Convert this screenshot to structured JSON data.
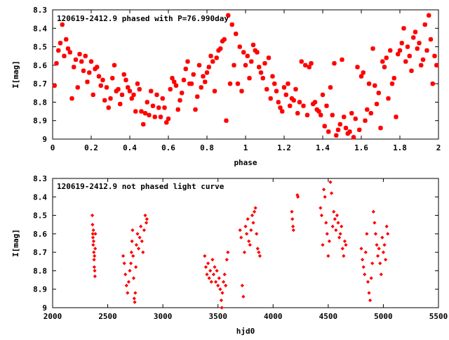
{
  "chart_data": [
    {
      "type": "scatter",
      "title": "120619-2412.9 phased with P=76.990day",
      "xlabel": "phase",
      "ylabel": "I[mag]",
      "xlim": [
        0,
        2
      ],
      "ylim": [
        8.3,
        9.0
      ],
      "y_inverted": true,
      "grid": false,
      "legend": "none",
      "marker_color": "#ff0000",
      "x_ticks": [
        0,
        0.2,
        0.4,
        0.6,
        0.8,
        1,
        1.2,
        1.4,
        1.6,
        1.8,
        2
      ],
      "x_tick_labels": [
        "0",
        "0.2",
        "0.4",
        "0.6",
        "0.8",
        "1",
        "1.2",
        "1.4",
        "1.6",
        "1.8",
        "2"
      ],
      "y_ticks": [
        8.3,
        8.4,
        8.5,
        8.6,
        8.7,
        8.8,
        8.9,
        9.0
      ],
      "y_tick_labels": [
        "8.3",
        "8.4",
        "8.5",
        "8.6",
        "8.7",
        "8.8",
        "8.9",
        "9"
      ],
      "points": [
        [
          0.01,
          8.71
        ],
        [
          0.03,
          8.52
        ],
        [
          0.04,
          8.48
        ],
        [
          0.05,
          8.38
        ],
        [
          0.06,
          8.55
        ],
        [
          0.07,
          8.46
        ],
        [
          0.09,
          8.53
        ],
        [
          0.11,
          8.61
        ],
        [
          0.13,
          8.72
        ],
        [
          0.15,
          8.58
        ],
        [
          0.17,
          8.55
        ],
        [
          0.19,
          8.64
        ],
        [
          0.21,
          8.76
        ],
        [
          0.23,
          8.61
        ],
        [
          0.25,
          8.71
        ],
        [
          0.27,
          8.79
        ],
        [
          0.29,
          8.83
        ],
        [
          0.31,
          8.67
        ],
        [
          0.33,
          8.74
        ],
        [
          0.35,
          8.81
        ],
        [
          0.37,
          8.65
        ],
        [
          0.39,
          8.72
        ],
        [
          0.41,
          8.78
        ],
        [
          0.43,
          8.85
        ],
        [
          0.45,
          8.73
        ],
        [
          0.47,
          8.92
        ],
        [
          0.49,
          8.8
        ],
        [
          0.51,
          8.74
        ],
        [
          0.53,
          8.88
        ],
        [
          0.55,
          8.83
        ],
        [
          0.57,
          8.78
        ],
        [
          0.59,
          8.91
        ],
        [
          0.61,
          8.73
        ],
        [
          0.63,
          8.69
        ],
        [
          0.65,
          8.84
        ],
        [
          0.67,
          8.75
        ],
        [
          0.69,
          8.62
        ],
        [
          0.71,
          8.7
        ],
        [
          0.73,
          8.65
        ],
        [
          0.75,
          8.77
        ],
        [
          0.77,
          8.72
        ],
        [
          0.79,
          8.69
        ],
        [
          0.81,
          8.61
        ],
        [
          0.83,
          8.58
        ],
        [
          0.85,
          8.56
        ],
        [
          0.87,
          8.51
        ],
        [
          0.89,
          8.46
        ],
        [
          0.91,
          8.33
        ],
        [
          0.93,
          8.38
        ],
        [
          0.95,
          8.43
        ],
        [
          0.97,
          8.5
        ],
        [
          0.99,
          8.53
        ],
        [
          1.01,
          8.55
        ],
        [
          1.03,
          8.58
        ],
        [
          1.05,
          8.52
        ],
        [
          1.07,
          8.61
        ],
        [
          1.09,
          8.67
        ],
        [
          1.11,
          8.73
        ],
        [
          1.13,
          8.78
        ],
        [
          1.15,
          8.7
        ],
        [
          1.17,
          8.8
        ],
        [
          1.19,
          8.85
        ],
        [
          1.21,
          8.76
        ],
        [
          1.23,
          8.82
        ],
        [
          1.25,
          8.79
        ],
        [
          1.27,
          8.86
        ],
        [
          1.29,
          8.58
        ],
        [
          1.31,
          8.6
        ],
        [
          1.33,
          8.61
        ],
        [
          1.35,
          8.81
        ],
        [
          1.37,
          8.84
        ],
        [
          1.39,
          8.87
        ],
        [
          1.41,
          8.93
        ],
        [
          1.43,
          8.96
        ],
        [
          1.45,
          8.87
        ],
        [
          1.47,
          8.98
        ],
        [
          1.49,
          8.92
        ],
        [
          1.51,
          8.88
        ],
        [
          1.53,
          8.97
        ],
        [
          1.55,
          8.86
        ],
        [
          1.57,
          8.89
        ],
        [
          1.59,
          8.95
        ],
        [
          1.61,
          8.64
        ],
        [
          1.63,
          8.84
        ],
        [
          1.65,
          8.86
        ],
        [
          1.67,
          8.71
        ],
        [
          1.69,
          8.75
        ],
        [
          1.71,
          8.58
        ],
        [
          1.73,
          8.56
        ],
        [
          1.75,
          8.52
        ],
        [
          1.77,
          8.67
        ],
        [
          1.79,
          8.54
        ],
        [
          1.81,
          8.48
        ],
        [
          1.83,
          8.58
        ],
        [
          1.85,
          8.55
        ],
        [
          1.87,
          8.45
        ],
        [
          1.89,
          8.51
        ],
        [
          1.91,
          8.6
        ],
        [
          1.93,
          8.38
        ],
        [
          1.95,
          8.33
        ],
        [
          1.97,
          8.7
        ],
        [
          1.99,
          8.6
        ],
        [
          0.02,
          8.59
        ],
        [
          0.1,
          8.78
        ],
        [
          0.18,
          8.69
        ],
        [
          0.26,
          8.68
        ],
        [
          0.34,
          8.73
        ],
        [
          0.42,
          8.76
        ],
        [
          0.5,
          8.87
        ],
        [
          0.58,
          8.83
        ],
        [
          0.66,
          8.79
        ],
        [
          0.74,
          8.84
        ],
        [
          0.82,
          8.55
        ],
        [
          0.9,
          8.9
        ],
        [
          0.98,
          8.74
        ],
        [
          1.06,
          8.53
        ],
        [
          1.14,
          8.66
        ],
        [
          1.22,
          8.7
        ],
        [
          1.3,
          8.82
        ],
        [
          1.38,
          8.85
        ],
        [
          1.46,
          8.59
        ],
        [
          1.54,
          8.96
        ],
        [
          1.62,
          8.9
        ],
        [
          1.7,
          8.94
        ],
        [
          1.78,
          8.88
        ],
        [
          1.86,
          8.63
        ],
        [
          1.94,
          8.52
        ],
        [
          0.08,
          8.51
        ],
        [
          0.16,
          8.63
        ],
        [
          0.24,
          8.66
        ],
        [
          0.32,
          8.6
        ],
        [
          0.4,
          8.74
        ],
        [
          0.48,
          8.86
        ],
        [
          0.56,
          8.88
        ],
        [
          0.64,
          8.71
        ],
        [
          0.72,
          8.7
        ],
        [
          0.8,
          8.64
        ],
        [
          0.88,
          8.47
        ],
        [
          0.96,
          8.7
        ],
        [
          1.04,
          8.49
        ],
        [
          1.12,
          8.56
        ],
        [
          1.2,
          8.72
        ],
        [
          1.28,
          8.8
        ],
        [
          1.36,
          8.8
        ],
        [
          1.44,
          8.72
        ],
        [
          1.52,
          8.94
        ],
        [
          1.6,
          8.66
        ],
        [
          1.68,
          8.81
        ],
        [
          1.76,
          8.7
        ],
        [
          1.84,
          8.5
        ],
        [
          1.92,
          8.57
        ],
        [
          0.12,
          8.57
        ],
        [
          0.2,
          8.58
        ],
        [
          0.28,
          8.72
        ],
        [
          0.36,
          8.76
        ],
        [
          0.44,
          8.7
        ],
        [
          0.52,
          8.82
        ],
        [
          0.6,
          8.89
        ],
        [
          0.68,
          8.68
        ],
        [
          0.76,
          8.6
        ],
        [
          0.84,
          8.74
        ],
        [
          0.92,
          8.7
        ],
        [
          1.0,
          8.6
        ],
        [
          1.08,
          8.64
        ],
        [
          1.16,
          8.74
        ],
        [
          1.24,
          8.78
        ],
        [
          1.32,
          8.87
        ],
        [
          1.4,
          8.76
        ],
        [
          1.48,
          8.95
        ],
        [
          1.56,
          8.99
        ],
        [
          1.64,
          8.7
        ],
        [
          1.72,
          8.61
        ],
        [
          1.8,
          8.52
        ],
        [
          1.88,
          8.42
        ],
        [
          1.96,
          8.46
        ],
        [
          0.14,
          8.54
        ],
        [
          0.22,
          8.62
        ],
        [
          0.3,
          8.78
        ],
        [
          0.38,
          8.68
        ],
        [
          0.46,
          8.85
        ],
        [
          0.54,
          8.76
        ],
        [
          0.62,
          8.67
        ],
        [
          0.7,
          8.58
        ],
        [
          0.78,
          8.66
        ],
        [
          0.86,
          8.52
        ],
        [
          0.94,
          8.6
        ],
        [
          1.02,
          8.67
        ],
        [
          1.1,
          8.59
        ],
        [
          1.18,
          8.83
        ],
        [
          1.26,
          8.73
        ],
        [
          1.34,
          8.59
        ],
        [
          1.42,
          8.82
        ],
        [
          1.5,
          8.57
        ],
        [
          1.58,
          8.61
        ],
        [
          1.66,
          8.51
        ],
        [
          1.74,
          8.78
        ],
        [
          1.82,
          8.4
        ],
        [
          1.9,
          8.48
        ],
        [
          1.98,
          8.55
        ]
      ]
    },
    {
      "type": "scatter",
      "title": "120619-2412.9 not phased light curve",
      "xlabel": "hjd0",
      "ylabel": "I[mag]",
      "xlim": [
        2000,
        5500
      ],
      "ylim": [
        8.3,
        9.0
      ],
      "y_inverted": true,
      "grid": false,
      "legend": "none",
      "marker_color": "#ff0000",
      "x_ticks": [
        2000,
        2500,
        3000,
        3500,
        4000,
        4500,
        5000,
        5500
      ],
      "x_tick_labels": [
        "2000",
        "2500",
        "3000",
        "3500",
        "4000",
        "4500",
        "5000",
        "5500"
      ],
      "y_ticks": [
        8.3,
        8.4,
        8.5,
        8.6,
        8.7,
        8.8,
        8.9,
        9.0
      ],
      "y_tick_labels": [
        "8.3",
        "8.4",
        "8.5",
        "8.6",
        "8.7",
        "8.8",
        "8.9",
        "9"
      ],
      "points": [
        [
          2360,
          8.5
        ],
        [
          2362,
          8.55
        ],
        [
          2364,
          8.6
        ],
        [
          2366,
          8.62
        ],
        [
          2368,
          8.66
        ],
        [
          2370,
          8.58
        ],
        [
          2372,
          8.64
        ],
        [
          2374,
          8.7
        ],
        [
          2376,
          8.74
        ],
        [
          2378,
          8.78
        ],
        [
          2380,
          8.72
        ],
        [
          2382,
          8.8
        ],
        [
          2384,
          8.83
        ],
        [
          2386,
          8.68
        ],
        [
          2388,
          8.6
        ],
        [
          2640,
          8.72
        ],
        [
          2650,
          8.76
        ],
        [
          2660,
          8.82
        ],
        [
          2670,
          8.88
        ],
        [
          2680,
          8.92
        ],
        [
          2690,
          8.86
        ],
        [
          2700,
          8.8
        ],
        [
          2710,
          8.76
        ],
        [
          2715,
          8.7
        ],
        [
          2720,
          8.64
        ],
        [
          2725,
          8.58
        ],
        [
          2730,
          8.72
        ],
        [
          2735,
          8.84
        ],
        [
          2740,
          8.95
        ],
        [
          2745,
          8.97
        ],
        [
          2750,
          8.92
        ],
        [
          2755,
          8.78
        ],
        [
          2760,
          8.66
        ],
        [
          2770,
          8.6
        ],
        [
          2780,
          8.68
        ],
        [
          2790,
          8.62
        ],
        [
          2800,
          8.56
        ],
        [
          2810,
          8.64
        ],
        [
          2820,
          8.7
        ],
        [
          2830,
          8.58
        ],
        [
          2840,
          8.5
        ],
        [
          2850,
          8.54
        ],
        [
          2855,
          8.52
        ],
        [
          3380,
          8.72
        ],
        [
          3390,
          8.78
        ],
        [
          3400,
          8.82
        ],
        [
          3410,
          8.76
        ],
        [
          3420,
          8.84
        ],
        [
          3430,
          8.8
        ],
        [
          3440,
          8.86
        ],
        [
          3450,
          8.74
        ],
        [
          3460,
          8.82
        ],
        [
          3470,
          8.78
        ],
        [
          3480,
          8.86
        ],
        [
          3490,
          8.8
        ],
        [
          3500,
          8.88
        ],
        [
          3510,
          8.84
        ],
        [
          3520,
          8.9
        ],
        [
          3530,
          8.96
        ],
        [
          3535,
          9.0
        ],
        [
          3540,
          8.92
        ],
        [
          3550,
          8.86
        ],
        [
          3560,
          8.82
        ],
        [
          3570,
          8.88
        ],
        [
          3580,
          8.74
        ],
        [
          3590,
          8.7
        ],
        [
          3700,
          8.58
        ],
        [
          3710,
          8.62
        ],
        [
          3720,
          8.88
        ],
        [
          3730,
          8.94
        ],
        [
          3740,
          8.7
        ],
        [
          3750,
          8.56
        ],
        [
          3760,
          8.6
        ],
        [
          3770,
          8.52
        ],
        [
          3780,
          8.64
        ],
        [
          3790,
          8.66
        ],
        [
          3800,
          8.58
        ],
        [
          3810,
          8.5
        ],
        [
          3820,
          8.54
        ],
        [
          3830,
          8.48
        ],
        [
          3840,
          8.46
        ],
        [
          3850,
          8.6
        ],
        [
          3860,
          8.68
        ],
        [
          3870,
          8.7
        ],
        [
          3880,
          8.72
        ],
        [
          4170,
          8.48
        ],
        [
          4175,
          8.52
        ],
        [
          4180,
          8.56
        ],
        [
          4185,
          8.58
        ],
        [
          4220,
          8.39
        ],
        [
          4225,
          8.4
        ],
        [
          4430,
          8.46
        ],
        [
          4440,
          8.5
        ],
        [
          4450,
          8.66
        ],
        [
          4460,
          8.36
        ],
        [
          4470,
          8.4
        ],
        [
          4480,
          8.54
        ],
        [
          4490,
          8.6
        ],
        [
          4500,
          8.72
        ],
        [
          4510,
          8.64
        ],
        [
          4520,
          8.32
        ],
        [
          4530,
          8.38
        ],
        [
          4540,
          8.56
        ],
        [
          4550,
          8.48
        ],
        [
          4560,
          8.52
        ],
        [
          4570,
          8.58
        ],
        [
          4580,
          8.5
        ],
        [
          4590,
          8.54
        ],
        [
          4600,
          8.62
        ],
        [
          4610,
          8.6
        ],
        [
          4620,
          8.56
        ],
        [
          4630,
          8.68
        ],
        [
          4640,
          8.72
        ],
        [
          4650,
          8.64
        ],
        [
          4660,
          8.66
        ],
        [
          4800,
          8.68
        ],
        [
          4810,
          8.74
        ],
        [
          4820,
          8.78
        ],
        [
          4830,
          8.82
        ],
        [
          4840,
          8.7
        ],
        [
          4850,
          8.6
        ],
        [
          4860,
          8.86
        ],
        [
          4870,
          8.92
        ],
        [
          4880,
          8.96
        ],
        [
          4890,
          8.84
        ],
        [
          4900,
          8.76
        ],
        [
          4910,
          8.48
        ],
        [
          4920,
          8.54
        ],
        [
          4930,
          8.6
        ],
        [
          4940,
          8.66
        ],
        [
          4950,
          8.72
        ],
        [
          4960,
          8.68
        ],
        [
          4970,
          8.76
        ],
        [
          4980,
          8.82
        ],
        [
          4990,
          8.62
        ],
        [
          5000,
          8.7
        ],
        [
          5010,
          8.66
        ],
        [
          5020,
          8.74
        ],
        [
          5030,
          8.56
        ],
        [
          5040,
          8.6
        ]
      ]
    }
  ]
}
